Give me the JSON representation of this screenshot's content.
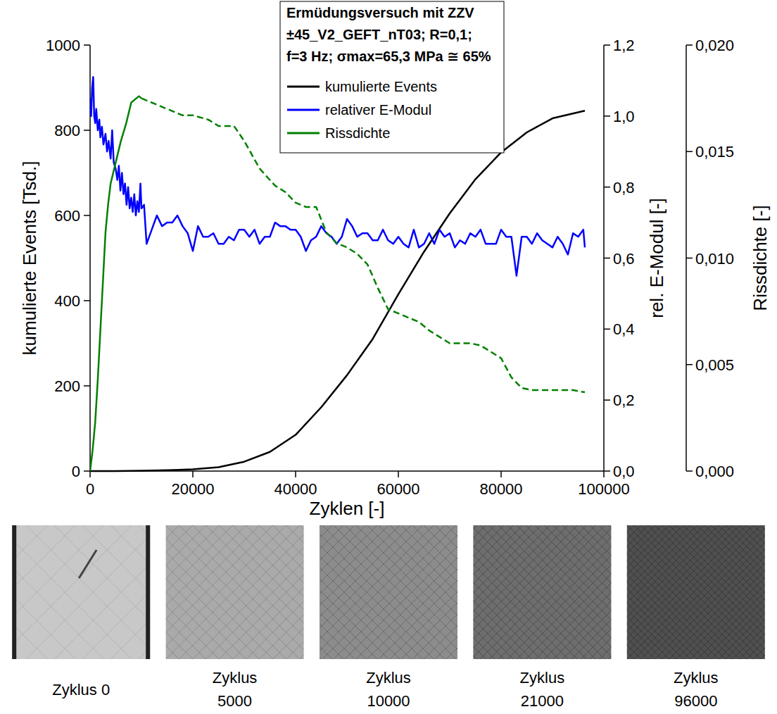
{
  "chart_data": {
    "type": "line",
    "title": [
      "Ermüdungsversuch mit ZZV",
      "±45_V2_GEFT_nT03; R=0,1;",
      "f=3 Hz; σmax=65,3 MPa ≅ 65%"
    ],
    "x_label": "Zyklen [-]",
    "y_label": "kumulierte Events [Tsd.]",
    "y2_label": "rel. E-Modul [-]",
    "y3_label": "Rissdichte [-]",
    "xlim": [
      0,
      100000
    ],
    "xticks": [
      0,
      20000,
      40000,
      60000,
      80000,
      100000
    ],
    "ylim": [
      0,
      1000
    ],
    "yticks": [
      0,
      200,
      400,
      600,
      800,
      1000
    ],
    "y2lim": [
      0,
      1.2
    ],
    "y2ticks": [
      {
        "value": 0,
        "label": "0,0"
      },
      {
        "value": 0.2,
        "label": "0,2"
      },
      {
        "value": 0.4,
        "label": "0,4"
      },
      {
        "value": 0.6,
        "label": "0,6"
      },
      {
        "value": 0.8,
        "label": "0,8"
      },
      {
        "value": 1.0,
        "label": "1,0"
      },
      {
        "value": 1.2,
        "label": "1,2"
      }
    ],
    "y3lim": [
      0,
      0.02
    ],
    "y3ticks": [
      {
        "value": 0,
        "label": "0,000"
      },
      {
        "value": 0.005,
        "label": "0,005"
      },
      {
        "value": 0.01,
        "label": "0,010"
      },
      {
        "value": 0.015,
        "label": "0,015"
      },
      {
        "value": 0.02,
        "label": "0,020"
      }
    ],
    "legend": "top",
    "grid": false,
    "series": [
      {
        "name": "kumulierte Events",
        "color": "#000000",
        "axis": "y",
        "line_style": "solid",
        "x": [
          0,
          5000,
          10000,
          15000,
          20000,
          25000,
          30000,
          35000,
          40000,
          45000,
          50000,
          55000,
          60000,
          65000,
          70000,
          75000,
          80000,
          85000,
          90000,
          96300
        ],
        "values": [
          0,
          0,
          1,
          2,
          4,
          9,
          22,
          45,
          85,
          150,
          225,
          310,
          415,
          515,
          605,
          685,
          748,
          795,
          828,
          846
        ]
      },
      {
        "name": "relativer E-Modul",
        "color": "#0000ff",
        "axis": "y2",
        "line_style": "solid",
        "x": [
          0,
          200,
          400,
          600,
          800,
          1000,
          1200,
          1500,
          1800,
          2000,
          2300,
          2600,
          3000,
          3300,
          3600,
          4000,
          4300,
          4600,
          5000,
          5300,
          5600,
          5900,
          6200,
          6500,
          6800,
          7100,
          7400,
          7700,
          8000,
          8300,
          8600,
          8900,
          9200,
          9500,
          9800,
          10000,
          10500,
          11000,
          12000,
          13000,
          14000,
          15000,
          16000,
          17000,
          18000,
          19000,
          20000,
          21000,
          22000,
          23000,
          24000,
          25000,
          26000,
          27000,
          28000,
          29000,
          30000,
          31000,
          32000,
          33000,
          34000,
          35000,
          36000,
          37000,
          38000,
          39000,
          40000,
          41000,
          42000,
          43000,
          44000,
          45000,
          46000,
          47000,
          48000,
          49000,
          50000,
          51000,
          52000,
          53000,
          54000,
          55000,
          56000,
          57000,
          58000,
          59000,
          60000,
          61000,
          62000,
          63000,
          64000,
          65000,
          66000,
          67000,
          68000,
          69000,
          70000,
          71000,
          72000,
          73000,
          74000,
          75000,
          76000,
          77000,
          78000,
          79000,
          80000,
          81000,
          82000,
          83000,
          84000,
          85000,
          86000,
          87000,
          88000,
          89000,
          90000,
          91000,
          92000,
          93000,
          94000,
          95000,
          96000,
          96300
        ],
        "values": [
          1.05,
          1.0,
          1.08,
          1.11,
          1.0,
          0.98,
          1.02,
          0.96,
          0.99,
          0.94,
          0.97,
          0.92,
          0.95,
          0.9,
          0.93,
          0.88,
          0.96,
          0.87,
          0.85,
          0.82,
          0.86,
          0.79,
          0.84,
          0.78,
          0.81,
          0.75,
          0.8,
          0.74,
          0.77,
          0.73,
          0.78,
          0.72,
          0.76,
          0.73,
          0.81,
          0.74,
          0.75,
          0.64,
          0.68,
          0.72,
          0.69,
          0.7,
          0.7,
          0.72,
          0.69,
          0.67,
          0.62,
          0.69,
          0.66,
          0.66,
          0.67,
          0.64,
          0.64,
          0.66,
          0.65,
          0.68,
          0.68,
          0.66,
          0.68,
          0.64,
          0.66,
          0.66,
          0.7,
          0.69,
          0.69,
          0.68,
          0.68,
          0.66,
          0.62,
          0.65,
          0.66,
          0.69,
          0.67,
          0.66,
          0.64,
          0.66,
          0.71,
          0.69,
          0.66,
          0.67,
          0.67,
          0.65,
          0.65,
          0.68,
          0.65,
          0.64,
          0.66,
          0.64,
          0.63,
          0.68,
          0.63,
          0.64,
          0.67,
          0.64,
          0.68,
          0.66,
          0.67,
          0.63,
          0.65,
          0.64,
          0.67,
          0.66,
          0.68,
          0.64,
          0.64,
          0.64,
          0.68,
          0.66,
          0.66,
          0.55,
          0.66,
          0.66,
          0.64,
          0.67,
          0.65,
          0.64,
          0.63,
          0.66,
          0.64,
          0.61,
          0.67,
          0.66,
          0.68,
          0.63
        ]
      },
      {
        "name": "Rissdichte",
        "color": "#008000",
        "axis": "y3",
        "line_style": "solid",
        "x": [
          0,
          500,
          1000,
          1500,
          2000,
          2500,
          3000,
          3500,
          4000,
          5000,
          6000,
          7000,
          8000,
          9000,
          9500,
          10000
        ],
        "values": [
          0,
          0.001,
          0.0023,
          0.0043,
          0.0066,
          0.0089,
          0.0112,
          0.0125,
          0.0135,
          0.0145,
          0.0155,
          0.0163,
          0.0173,
          0.0175,
          0.0176,
          0.0175
        ]
      },
      {
        "name": null,
        "color": "#008000",
        "axis": "y3",
        "line_style": "dashed",
        "x": [
          10000,
          15000,
          18000,
          20000,
          23000,
          25000,
          28000,
          30000,
          33000,
          36000,
          38000,
          40000,
          42000,
          44000,
          46000,
          48000,
          50000,
          52000,
          54000,
          56000,
          58000,
          60000,
          62000,
          64000,
          66000,
          68000,
          70000,
          72000,
          74000,
          76000,
          78000,
          80000,
          82000,
          84000,
          86000,
          88000,
          90000,
          92000,
          94000,
          96300
        ],
        "values": [
          0.0175,
          0.017,
          0.0167,
          0.0167,
          0.0165,
          0.0162,
          0.0162,
          0.0155,
          0.0142,
          0.0134,
          0.0131,
          0.0126,
          0.0124,
          0.0124,
          0.0112,
          0.0107,
          0.0105,
          0.0102,
          0.0097,
          0.0086,
          0.0076,
          0.0074,
          0.0072,
          0.007,
          0.0066,
          0.0063,
          0.006,
          0.006,
          0.006,
          0.0059,
          0.0056,
          0.0053,
          0.0044,
          0.0039,
          0.0038,
          0.0038,
          0.0038,
          0.0038,
          0.0038,
          0.0037
        ]
      }
    ]
  },
  "micrographs": {
    "captions": [
      [
        "Zyklus 0"
      ],
      [
        "Zyklus",
        "5000"
      ],
      [
        "Zyklus",
        "10000"
      ],
      [
        "Zyklus",
        "21000"
      ],
      [
        "Zyklus",
        "96000"
      ]
    ]
  }
}
